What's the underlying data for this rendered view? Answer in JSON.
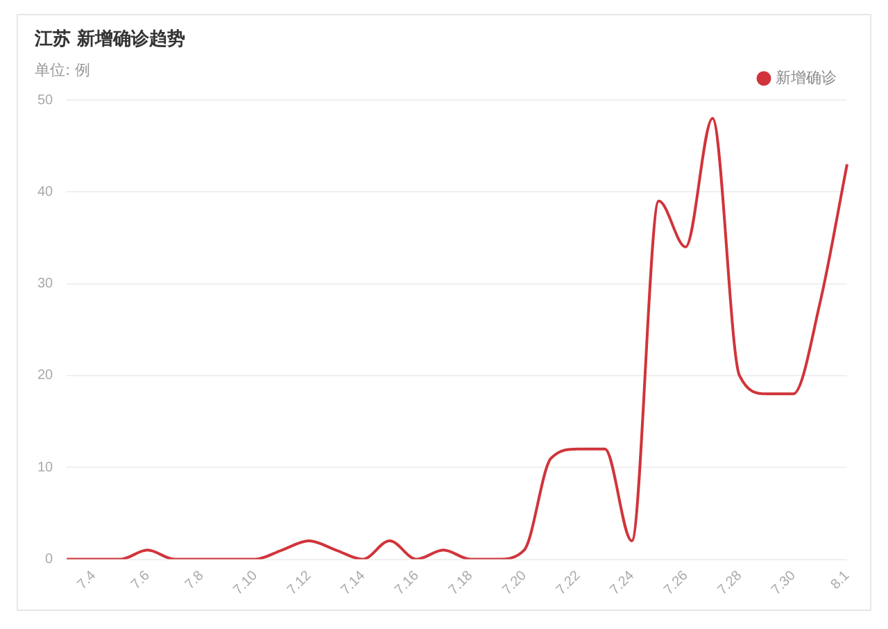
{
  "chart_data": {
    "type": "line",
    "title": "江苏 新增确诊趋势",
    "subtitle": "单位: 例",
    "categories": [
      null,
      "7.4",
      null,
      "7.6",
      null,
      "7.8",
      null,
      "7.10",
      null,
      "7.12",
      null,
      "7.14",
      null,
      "7.16",
      null,
      "7.18",
      null,
      "7.20",
      null,
      "7.22",
      null,
      "7.24",
      null,
      "7.26",
      null,
      "7.28",
      null,
      "7.30",
      null,
      "8.1"
    ],
    "series": [
      {
        "name": "新增确诊",
        "color": "#d0343a",
        "values": [
          0,
          0,
          0,
          1,
          0,
          0,
          0,
          0,
          1,
          2,
          1,
          0,
          2,
          0,
          1,
          0,
          0,
          1,
          11,
          12,
          12,
          2,
          39,
          34,
          48,
          20,
          18,
          18,
          28,
          43
        ]
      }
    ],
    "ylim": [
      0,
      50
    ],
    "yticks": [
      0,
      10,
      20,
      30,
      40,
      50
    ],
    "grid": "y",
    "legend": "top right",
    "marker": "none",
    "line_style": "solid"
  }
}
